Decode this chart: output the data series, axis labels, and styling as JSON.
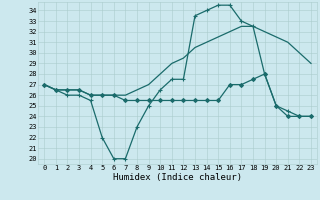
{
  "xlabel": "Humidex (Indice chaleur)",
  "xlim": [
    -0.5,
    23.5
  ],
  "ylim": [
    19.5,
    34.8
  ],
  "xticks": [
    0,
    1,
    2,
    3,
    4,
    5,
    6,
    7,
    8,
    9,
    10,
    11,
    12,
    13,
    14,
    15,
    16,
    17,
    18,
    19,
    20,
    21,
    22,
    23
  ],
  "yticks": [
    20,
    21,
    22,
    23,
    24,
    25,
    26,
    27,
    28,
    29,
    30,
    31,
    32,
    33,
    34
  ],
  "background_color": "#cce8ee",
  "grid_color": "#aacccc",
  "line_color": "#1a6b6b",
  "lines": [
    {
      "x": [
        0,
        1,
        2,
        3,
        4,
        5,
        6,
        7,
        8,
        9,
        10,
        11,
        12,
        13,
        14,
        15,
        16,
        17,
        18,
        19,
        20,
        21,
        22,
        23
      ],
      "y": [
        27,
        26.5,
        26,
        26,
        25.5,
        22,
        20,
        20,
        23,
        25,
        26.5,
        27.5,
        27.5,
        33.5,
        34,
        34.5,
        34.5,
        33,
        32.5,
        28,
        25,
        24.5,
        24,
        24
      ],
      "marker": "+",
      "markersize": 3.5,
      "linewidth": 0.9
    },
    {
      "x": [
        0,
        1,
        2,
        3,
        4,
        5,
        6,
        7,
        8,
        9,
        10,
        11,
        12,
        13,
        14,
        15,
        16,
        17,
        18,
        19,
        20,
        21,
        22,
        23
      ],
      "y": [
        27,
        26.5,
        26.5,
        26.5,
        26,
        26,
        26,
        26,
        26.5,
        27,
        28,
        29,
        29.5,
        30.5,
        31,
        31.5,
        32,
        32.5,
        32.5,
        32,
        31.5,
        31,
        30,
        29
      ],
      "marker": null,
      "markersize": 0,
      "linewidth": 0.9
    },
    {
      "x": [
        0,
        1,
        2,
        3,
        4,
        5,
        6,
        7,
        8,
        9,
        10,
        11,
        12,
        13,
        14,
        15,
        16,
        17,
        18,
        19,
        20,
        21,
        22,
        23
      ],
      "y": [
        27,
        26.5,
        26.5,
        26.5,
        26,
        26,
        26,
        25.5,
        25.5,
        25.5,
        25.5,
        25.5,
        25.5,
        25.5,
        25.5,
        25.5,
        27,
        27,
        27.5,
        28,
        25,
        24,
        24,
        24
      ],
      "marker": "D",
      "markersize": 2,
      "linewidth": 0.9
    }
  ],
  "font_family": "monospace",
  "tick_fontsize": 5,
  "xlabel_fontsize": 6.5
}
